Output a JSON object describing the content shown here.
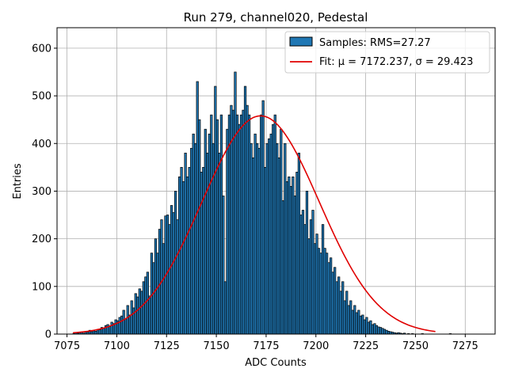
{
  "chart_data": {
    "type": "bar",
    "title": "Run 279, channel020, Pedestal",
    "xlabel": "ADC Counts",
    "ylabel": "Entries",
    "xlim": [
      7070,
      7290
    ],
    "ylim": [
      0,
      643
    ],
    "xticks": [
      7075,
      7100,
      7125,
      7150,
      7175,
      7200,
      7225,
      7250,
      7275
    ],
    "yticks": [
      0,
      100,
      200,
      300,
      400,
      500,
      600
    ],
    "grid": true,
    "legend_position": "top-right",
    "colors": {
      "bar": "#1f77b4",
      "bar_edge": "#000000",
      "fit": "#e00000",
      "grid": "#b0b0b0"
    },
    "series": [
      {
        "name": "Samples: RMS=27.27",
        "type": "histogram",
        "bin_start": 7078,
        "bin_width": 1,
        "values": [
          2,
          3,
          2,
          3,
          4,
          2,
          6,
          4,
          8,
          5,
          7,
          6,
          10,
          9,
          14,
          12,
          18,
          20,
          16,
          25,
          22,
          30,
          28,
          35,
          38,
          50,
          32,
          60,
          40,
          70,
          55,
          85,
          78,
          95,
          90,
          110,
          120,
          130,
          80,
          170,
          150,
          200,
          170,
          220,
          240,
          190,
          248,
          250,
          230,
          270,
          255,
          300,
          240,
          330,
          350,
          320,
          380,
          330,
          350,
          390,
          420,
          400,
          530,
          450,
          340,
          350,
          430,
          380,
          420,
          460,
          400,
          520,
          450,
          380,
          460,
          290,
          110,
          430,
          460,
          480,
          470,
          550,
          460,
          440,
          460,
          470,
          520,
          480,
          460,
          400,
          370,
          420,
          400,
          390,
          460,
          490,
          350,
          400,
          410,
          420,
          440,
          460,
          400,
          370,
          430,
          280,
          400,
          320,
          330,
          310,
          330,
          290,
          340,
          380,
          250,
          260,
          230,
          300,
          200,
          240,
          260,
          190,
          210,
          180,
          170,
          230,
          180,
          170,
          150,
          160,
          130,
          140,
          110,
          120,
          90,
          110,
          70,
          90,
          60,
          70,
          50,
          60,
          45,
          50,
          38,
          40,
          30,
          35,
          25,
          28,
          20,
          22,
          18,
          15,
          14,
          12,
          10,
          8,
          6,
          5,
          4,
          3,
          2,
          3,
          2,
          1,
          2,
          0,
          1,
          0,
          1,
          0,
          0,
          0,
          0,
          1,
          0,
          0,
          0,
          0,
          0,
          0,
          0,
          0,
          0,
          0,
          0,
          0,
          0,
          1
        ]
      },
      {
        "name": "Fit: μ = 7172.237, σ = 29.423",
        "type": "line",
        "mu": 7172.237,
        "sigma": 29.423,
        "amplitude": 458,
        "x_range": [
          7078,
          7260
        ]
      }
    ]
  }
}
